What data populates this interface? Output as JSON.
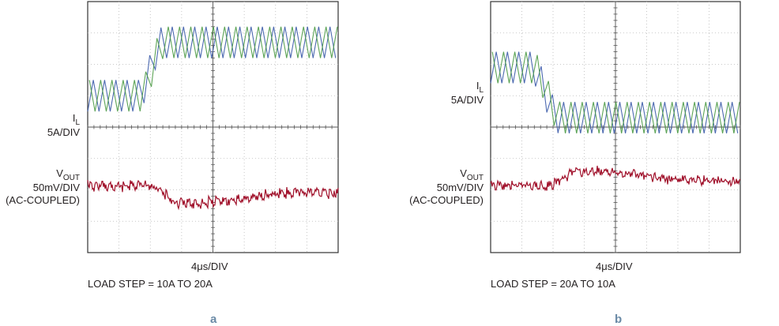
{
  "panels": [
    {
      "id": "a",
      "letter": "a",
      "il_label": {
        "main": "I",
        "sub": "L",
        "scale": "5A/DIV"
      },
      "vout_label": {
        "main": "V",
        "sub": "OUT",
        "scale": "50mV/DIV",
        "coupling": "(AC-COUPLED)"
      },
      "time_div": "4μs/DIV",
      "caption": "LOAD STEP = 10A TO 20A"
    },
    {
      "id": "b",
      "letter": "b",
      "il_label": {
        "main": "I",
        "sub": "L",
        "scale": "5A/DIV"
      },
      "vout_label": {
        "main": "V",
        "sub": "OUT",
        "scale": "50mV/DIV",
        "coupling": "(AC-COUPLED)"
      },
      "time_div": "4μs/DIV",
      "caption": "LOAD STEP = 20A TO 10A"
    }
  ],
  "chart_data": [
    {
      "type": "line",
      "x_divisions": 8,
      "y_divisions": 8,
      "xlabel": "4μs/DIV",
      "grid": true,
      "series": [
        {
          "name": "IL phase 1",
          "color": "#3a5aa8",
          "step_start_div": 1.6,
          "step_end_div": 2.4,
          "level_before_div": 1.0,
          "level_after_div": 2.7,
          "ripple_div": 1.0
        },
        {
          "name": "IL phase 2",
          "color": "#4b9a45",
          "step_start_div": 1.6,
          "step_end_div": 2.4,
          "level_before_div": 1.0,
          "level_after_div": 2.7,
          "ripple_div": 1.0
        },
        {
          "name": "VOUT",
          "color": "#a0102a",
          "dip_div": -0.55
        }
      ]
    },
    {
      "type": "line",
      "x_divisions": 8,
      "y_divisions": 8,
      "xlabel": "4μs/DIV",
      "grid": true,
      "series": [
        {
          "name": "IL phase 1",
          "color": "#3a5aa8",
          "step_start_div": 1.3,
          "step_end_div": 2.2,
          "level_before_div": 1.9,
          "level_after_div": 0.3,
          "ripple_div": 1.0
        },
        {
          "name": "IL phase 2",
          "color": "#4b9a45",
          "step_start_div": 1.3,
          "step_end_div": 2.2,
          "level_before_div": 1.9,
          "level_after_div": 0.3,
          "ripple_div": 1.0
        },
        {
          "name": "VOUT",
          "color": "#a0102a",
          "dip_div": 0.45
        }
      ]
    }
  ]
}
